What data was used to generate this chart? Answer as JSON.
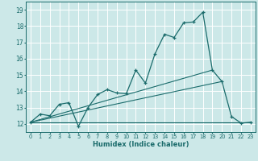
{
  "xlabel": "Humidex (Indice chaleur)",
  "bg_color": "#cce8e8",
  "line_color": "#1a6b6b",
  "grid_color": "#ffffff",
  "xlim": [
    -0.5,
    23.5
  ],
  "ylim": [
    11.5,
    19.5
  ],
  "yticks": [
    12,
    13,
    14,
    15,
    16,
    17,
    18,
    19
  ],
  "xticks": [
    0,
    1,
    2,
    3,
    4,
    5,
    6,
    7,
    8,
    9,
    10,
    11,
    12,
    13,
    14,
    15,
    16,
    17,
    18,
    19,
    20,
    21,
    22,
    23
  ],
  "main_curve_x": [
    0,
    1,
    2,
    3,
    4,
    5,
    6,
    7,
    8,
    9,
    10,
    11,
    12,
    13,
    14,
    15,
    16,
    17,
    18,
    19,
    20,
    21,
    22,
    23
  ],
  "main_curve_y": [
    12.1,
    12.6,
    12.5,
    13.2,
    13.3,
    11.85,
    13.0,
    13.8,
    14.1,
    13.9,
    13.85,
    15.3,
    14.5,
    16.3,
    17.5,
    17.3,
    18.2,
    18.25,
    18.85,
    15.3,
    14.6,
    12.45,
    12.05,
    12.1
  ],
  "line1_x": [
    0,
    19
  ],
  "line1_y": [
    12.1,
    15.3
  ],
  "line2_x": [
    0,
    20
  ],
  "line2_y": [
    12.1,
    14.6
  ],
  "line3_x": [
    0,
    23
  ],
  "line3_y": [
    12.1,
    12.1
  ]
}
